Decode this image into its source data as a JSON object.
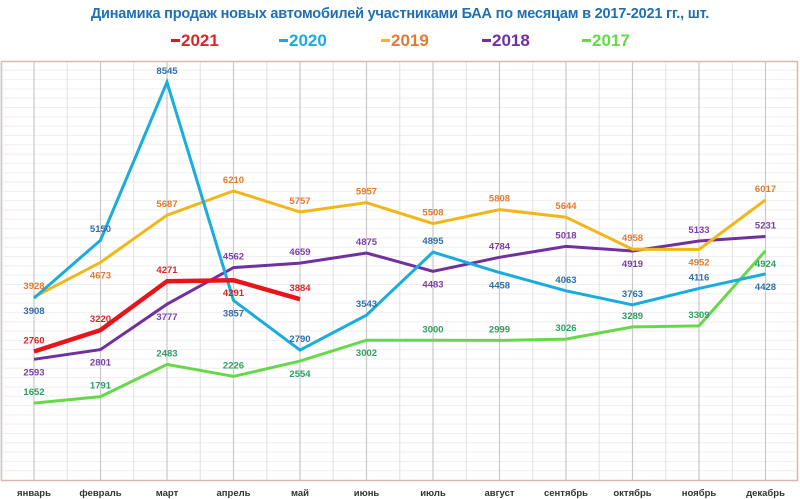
{
  "chart_data": {
    "type": "line",
    "title": "Динамика продаж новых автомобилей участниками БАА по месяцам в 2017-2021 гг., шт.",
    "xlabel": "",
    "ylabel": "",
    "ylim": [
      0,
      9000
    ],
    "grid": true,
    "legend_position": "top",
    "categories": [
      "январь",
      "февраль",
      "март",
      "апрель",
      "май",
      "июнь",
      "июль",
      "август",
      "сентябрь",
      "октябрь",
      "ноябрь",
      "декабрь"
    ],
    "series": [
      {
        "name": "2017",
        "line_color": "#66D94A",
        "label_color": "#2E9E63",
        "values": [
          1652,
          1791,
          2483,
          2226,
          2554,
          3002,
          3000,
          2999,
          3026,
          3289,
          3309,
          4924
        ],
        "label_pos": [
          "above",
          "above",
          "above",
          "above",
          "below",
          "below",
          "above",
          "above",
          "above",
          "above",
          "above",
          "below"
        ]
      },
      {
        "name": "2018",
        "line_color": "#7030A0",
        "label_color": "#7A3FA8",
        "values": [
          2593,
          2801,
          3777,
          4562,
          4659,
          4875,
          4483,
          4784,
          5018,
          4919,
          5133,
          5231
        ],
        "label_pos": [
          "below",
          "below",
          "below",
          "above",
          "above",
          "above",
          "below",
          "above",
          "above",
          "below",
          "above",
          "above"
        ]
      },
      {
        "name": "2019",
        "line_color": "#F2B617",
        "label_color": "#E07B30",
        "values": [
          3928,
          4673,
          5687,
          6210,
          5757,
          5957,
          5508,
          5808,
          5644,
          4958,
          4952,
          6017
        ],
        "label_pos": [
          "above",
          "below",
          "above",
          "above",
          "above",
          "above",
          "above",
          "above",
          "above",
          "above",
          "below",
          "above"
        ]
      },
      {
        "name": "2020",
        "line_color": "#1AACDF",
        "label_color": "#2E6FAE",
        "values": [
          3908,
          5150,
          8545,
          3857,
          2790,
          3543,
          4895,
          4458,
          4063,
          3763,
          4116,
          4428
        ],
        "label_pos": [
          "below",
          "above",
          "above",
          "below",
          "above",
          "above",
          "above",
          "below",
          "above",
          "above",
          "above",
          "below"
        ]
      },
      {
        "name": "2021",
        "line_color": "#E8141B",
        "label_color": "#D9262A",
        "values": [
          2760,
          3220,
          4271,
          4291,
          3884,
          null,
          null,
          null,
          null,
          null,
          null,
          null
        ],
        "label_pos": [
          "above",
          "above",
          "above",
          "below",
          "above",
          null,
          null,
          null,
          null,
          null,
          null,
          null
        ]
      }
    ],
    "legend": [
      {
        "label": "2021",
        "dash_color": "#E8141B",
        "text_color": "#D9262A"
      },
      {
        "label": "2020",
        "dash_color": "#1AACDF",
        "text_color": "#1AACDF"
      },
      {
        "label": "2019",
        "dash_color": "#F2B617",
        "text_color": "#E07B30"
      },
      {
        "label": "2018",
        "dash_color": "#7030A0",
        "text_color": "#7030A0"
      },
      {
        "label": "2017",
        "dash_color": "#66D94A",
        "text_color": "#66D94A"
      }
    ]
  }
}
